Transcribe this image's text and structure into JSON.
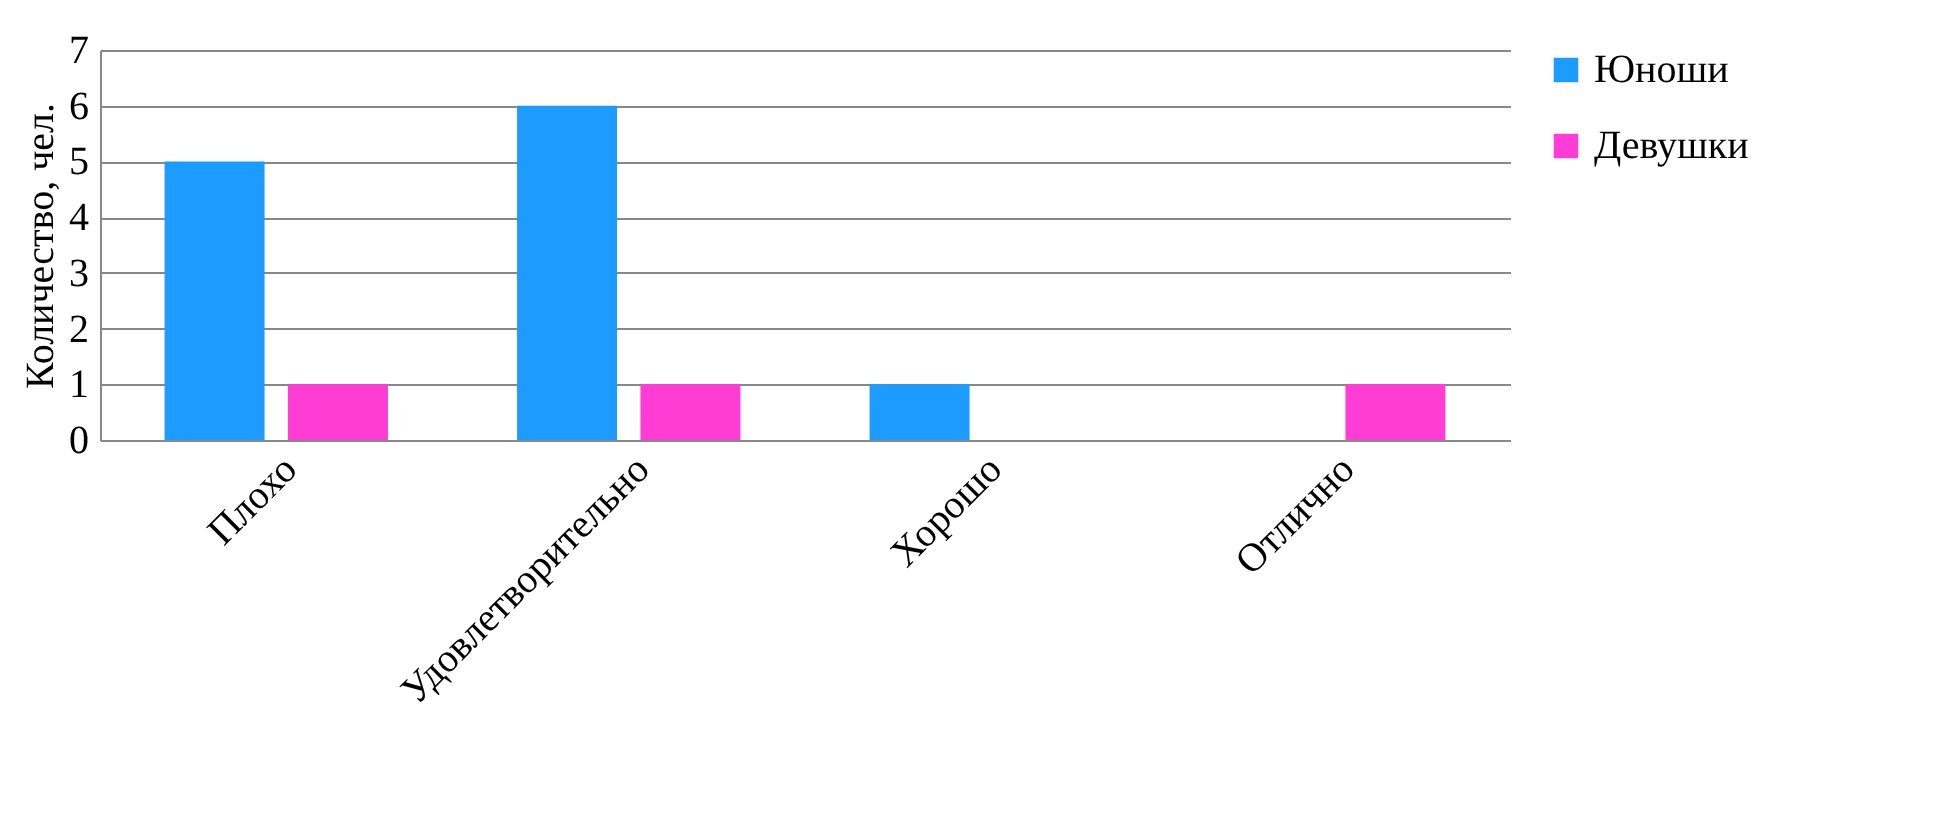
{
  "chart_data": {
    "type": "bar",
    "ylabel": "Количество, чел.",
    "categories": [
      "Плохо",
      "Удовлетворительно",
      "Хорошо",
      "Отлично"
    ],
    "series": [
      {
        "name": "Юноши",
        "color": "#1e9bff",
        "values": [
          5,
          6,
          1,
          0
        ]
      },
      {
        "name": "Девушки",
        "color": "#ff3dd4",
        "values": [
          1,
          1,
          0,
          1
        ]
      }
    ],
    "ylim": [
      0,
      7
    ],
    "yticks": [
      0,
      1,
      2,
      3,
      4,
      5,
      6,
      7
    ],
    "grid": "y",
    "legend": "right"
  }
}
